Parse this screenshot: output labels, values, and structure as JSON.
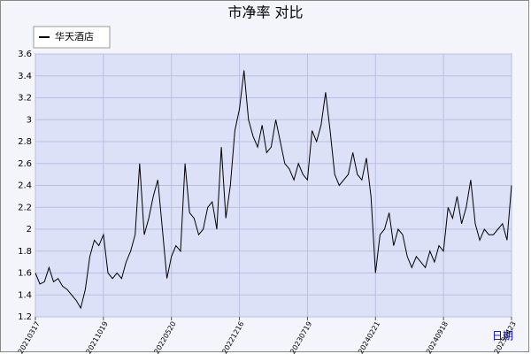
{
  "chart_data": {
    "type": "line",
    "title": "市净率  对比",
    "x_label": "日期",
    "x": [
      0,
      10,
      20,
      30,
      40,
      50,
      60,
      70,
      80,
      90,
      100,
      110,
      120,
      130,
      140,
      150,
      160,
      170,
      180,
      190,
      200,
      210,
      220,
      230,
      240,
      250,
      260,
      270,
      280,
      290,
      300,
      310,
      320,
      330,
      340,
      350,
      360,
      370,
      380,
      390,
      400,
      410,
      420,
      430,
      440,
      450,
      460,
      470,
      480,
      490,
      500,
      510,
      520,
      530,
      540,
      550,
      560,
      570,
      580,
      590,
      600,
      610,
      620,
      630,
      640,
      650,
      660,
      670,
      680,
      690,
      700,
      710,
      720,
      730,
      740,
      750,
      760,
      770,
      780,
      790,
      800,
      810,
      820,
      830,
      840,
      850,
      860,
      870,
      880,
      890,
      900,
      910,
      920,
      930,
      940,
      950,
      960,
      970,
      980,
      990,
      1000,
      1010,
      1020,
      1030,
      1040,
      1050
    ],
    "series": [
      {
        "name": "华天酒店",
        "color": "#000000",
        "values": [
          1.6,
          1.5,
          1.52,
          1.65,
          1.52,
          1.55,
          1.48,
          1.45,
          1.4,
          1.35,
          1.28,
          1.45,
          1.75,
          1.9,
          1.85,
          1.95,
          1.6,
          1.55,
          1.6,
          1.55,
          1.7,
          1.8,
          1.95,
          2.6,
          1.95,
          2.1,
          2.3,
          2.45,
          2.0,
          1.55,
          1.75,
          1.85,
          1.8,
          2.6,
          2.15,
          2.1,
          1.95,
          2.0,
          2.2,
          2.25,
          2.0,
          2.75,
          2.1,
          2.4,
          2.9,
          3.1,
          3.45,
          3.0,
          2.85,
          2.75,
          2.95,
          2.7,
          2.75,
          3.0,
          2.8,
          2.6,
          2.55,
          2.45,
          2.6,
          2.5,
          2.45,
          2.9,
          2.8,
          2.95,
          3.25,
          2.9,
          2.5,
          2.4,
          2.45,
          2.5,
          2.7,
          2.5,
          2.45,
          2.65,
          2.3,
          1.6,
          1.95,
          2.0,
          2.15,
          1.85,
          2.0,
          1.95,
          1.75,
          1.65,
          1.75,
          1.7,
          1.65,
          1.8,
          1.7,
          1.85,
          1.8,
          2.2,
          2.1,
          2.3,
          2.05,
          2.2,
          2.45,
          2.05,
          1.9,
          2.0,
          1.95,
          1.95,
          2.0,
          2.05,
          1.9,
          2.4
        ]
      }
    ],
    "xlim": [
      0,
      1050
    ],
    "xticks": [
      {
        "value": 0,
        "label": "20210317"
      },
      {
        "value": 150,
        "label": "20211019"
      },
      {
        "value": 300,
        "label": "20220520"
      },
      {
        "value": 450,
        "label": "20221216"
      },
      {
        "value": 600,
        "label": "20230719"
      },
      {
        "value": 750,
        "label": "20240221"
      },
      {
        "value": 900,
        "label": "20240918"
      },
      {
        "value": 1050,
        "label": "20250423"
      }
    ],
    "ylim": [
      1.2,
      3.6
    ],
    "yticks": [
      1.2,
      1.4,
      1.6,
      1.8,
      2.0,
      2.2,
      2.4,
      2.6,
      2.8,
      3.0,
      3.2,
      3.4,
      3.6
    ],
    "grid": true
  }
}
